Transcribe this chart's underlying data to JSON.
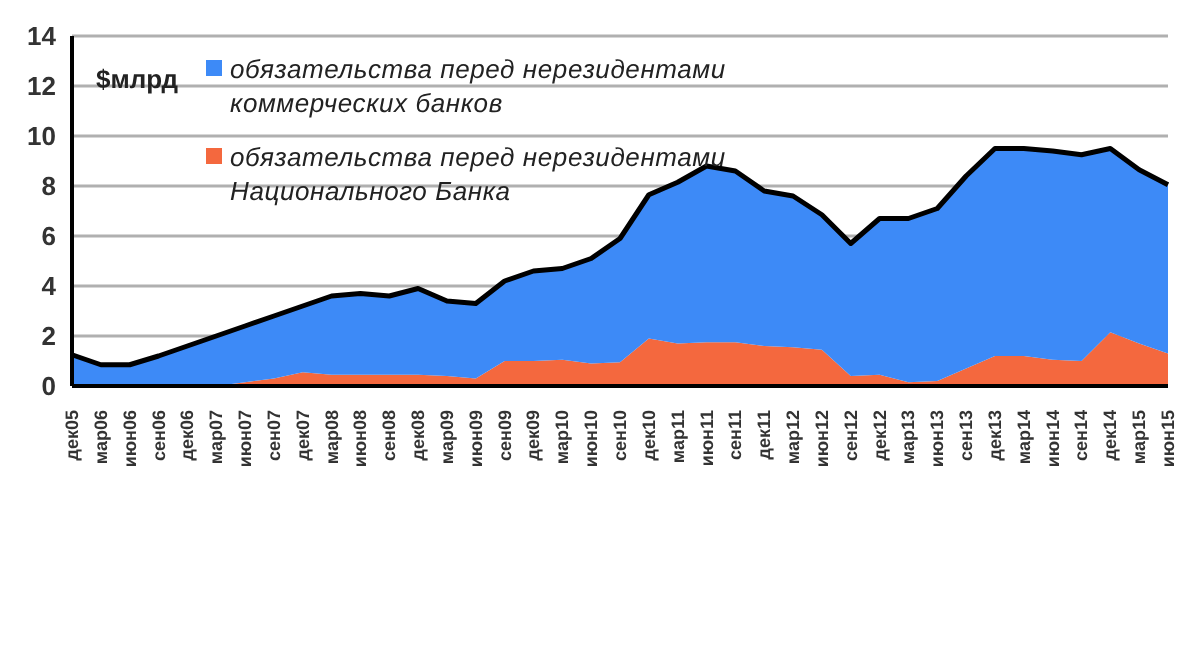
{
  "chart_data": {
    "type": "area",
    "stacked": true,
    "ylabel": "$млрд",
    "categories": [
      "дек05",
      "мар06",
      "июн06",
      "сен06",
      "дек06",
      "мар07",
      "июн07",
      "сен07",
      "дек07",
      "мар08",
      "июн08",
      "сен08",
      "дек08",
      "мар09",
      "июн09",
      "сен09",
      "дек09",
      "мар10",
      "июн10",
      "сен10",
      "дек10",
      "мар11",
      "июн11",
      "сен11",
      "дек11",
      "мар12",
      "июн12",
      "сен12",
      "дек12",
      "мар13",
      "июн13",
      "сен13",
      "дек13",
      "мар14",
      "июн14",
      "сен14",
      "дек14",
      "мар15",
      "июн15"
    ],
    "series": [
      {
        "name": "обязательства  перед  нерезидентами Национального  Банка",
        "color": "#f4683e",
        "values": [
          0,
          0,
          0,
          0,
          0,
          0,
          0.15,
          0.3,
          0.55,
          0.45,
          0.45,
          0.45,
          0.45,
          0.4,
          0.3,
          1.0,
          1.0,
          1.05,
          0.9,
          0.95,
          1.9,
          1.7,
          1.75,
          1.75,
          1.6,
          1.55,
          1.45,
          0.4,
          0.45,
          0.15,
          0.2,
          0.7,
          1.2,
          1.2,
          1.05,
          1.0,
          2.15,
          1.7,
          1.3
        ]
      },
      {
        "name": "обязательства  перед  нерезидентами коммерческих  банков",
        "color": "#3d8af7",
        "values": [
          1.25,
          0.85,
          0.85,
          1.2,
          1.6,
          2.0,
          2.25,
          2.5,
          2.65,
          3.15,
          3.25,
          3.15,
          3.45,
          3.0,
          3.0,
          3.2,
          3.6,
          3.65,
          4.2,
          4.95,
          5.75,
          6.45,
          7.05,
          6.85,
          6.2,
          6.05,
          5.4,
          5.3,
          6.25,
          6.55,
          6.9,
          7.7,
          8.3,
          8.3,
          8.35,
          8.25,
          7.35,
          6.95,
          6.75
        ]
      }
    ],
    "ylim": [
      0,
      14
    ],
    "yticks": [
      0,
      2,
      4,
      6,
      8,
      10,
      12,
      14
    ],
    "grid": "y",
    "legend": "top"
  }
}
